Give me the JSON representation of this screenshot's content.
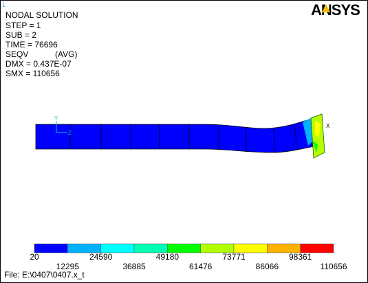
{
  "window_number": "1",
  "info": [
    "NODAL SOLUTION",
    "STEP = 1",
    "SUB = 2",
    "TIME = 76696"
  ],
  "result": {
    "label": "SEQV",
    "mode": "(AVG)"
  },
  "extremes": [
    "DMX = 0.437E-07",
    "SMX = 110656"
  ],
  "logo": "ANSYS",
  "triad": {
    "y": "Y",
    "z": "Z",
    "x": "X"
  },
  "legend": {
    "colors": [
      "#0000ff",
      "#00b2ff",
      "#00ffff",
      "#00ffb2",
      "#00ff00",
      "#b2ff00",
      "#ffff00",
      "#ffb200",
      "#ff0000"
    ],
    "labels": [
      20,
      12295,
      24590,
      36885,
      49180,
      61476,
      73771,
      86066,
      98361,
      110656
    ]
  },
  "file": "File: E:\\0407\\0407.x_t"
}
